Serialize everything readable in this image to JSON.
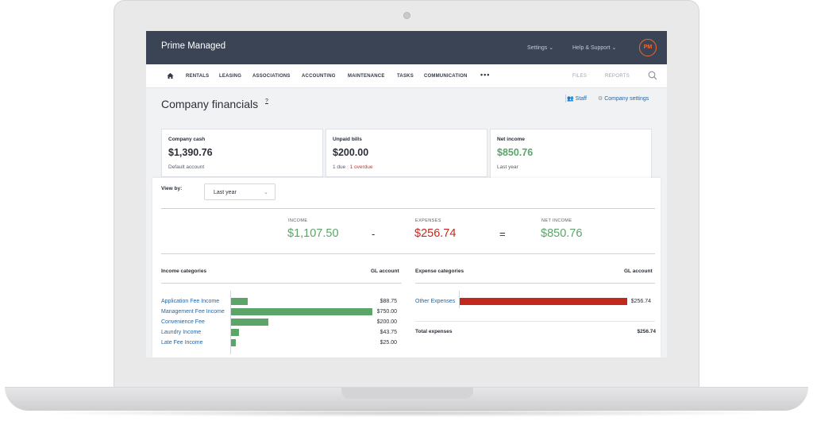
{
  "app": {
    "brand": "Prime Managed",
    "top_menu": {
      "settings": "Settings",
      "help": "Help & Support"
    },
    "avatar_initials": "PM",
    "accent": "#f26a2e",
    "topbar_color": "#3b4455"
  },
  "nav": {
    "items": [
      "RENTALS",
      "LEASING",
      "ASSOCIATIONS",
      "ACCOUNTING",
      "MAINTENANCE",
      "TASKS",
      "COMMUNICATION"
    ],
    "more": "•••",
    "right": [
      "FILES",
      "REPORTS"
    ],
    "icons": [
      "home-icon",
      "search-icon"
    ]
  },
  "page": {
    "title": "Company financials",
    "help": "?",
    "links": {
      "staff": "Staff",
      "company_settings": "Company settings"
    }
  },
  "cards": [
    {
      "title": "Company cash",
      "value": "$1,390.76",
      "sub": "Default account"
    },
    {
      "title": "Unpaid bills",
      "value": "$200.00",
      "sub_due": "1 due",
      "sub_overdue": "1 overdue"
    },
    {
      "title": "Net income",
      "value": "$850.76",
      "sub": "Last year"
    }
  ],
  "filters": {
    "view_by_label": "View by:",
    "view_by_value": "Last year"
  },
  "summary": {
    "income_label": "INCOME",
    "income": "$1,107.50",
    "minus": "-",
    "expenses_label": "EXPENSES",
    "expenses": "$256.74",
    "equals": "=",
    "net_label": "NET INCOME",
    "net": "$850.76"
  },
  "income_table": {
    "header": "Income categories",
    "gl_header": "GL account",
    "rows": [
      {
        "name": "Application Fee Income",
        "amount": "$88.75",
        "value": 88.75
      },
      {
        "name": "Management Fee Income",
        "amount": "$750.00",
        "value": 750.0
      },
      {
        "name": "Convenience Fee",
        "amount": "$200.00",
        "value": 200.0
      },
      {
        "name": "Laundry Income",
        "amount": "$43.75",
        "value": 43.75
      },
      {
        "name": "Late Fee Income",
        "amount": "$25.00",
        "value": 25.0
      }
    ]
  },
  "expense_table": {
    "header": "Expense categories",
    "gl_header": "GL account",
    "rows": [
      {
        "name": "Other Expenses",
        "amount": "$256.74",
        "value": 256.74
      }
    ],
    "total_label": "Total expenses",
    "total": "$256.74"
  },
  "colors": {
    "income": "#5aa567",
    "expense": "#c2291e",
    "link": "#2565a8"
  }
}
